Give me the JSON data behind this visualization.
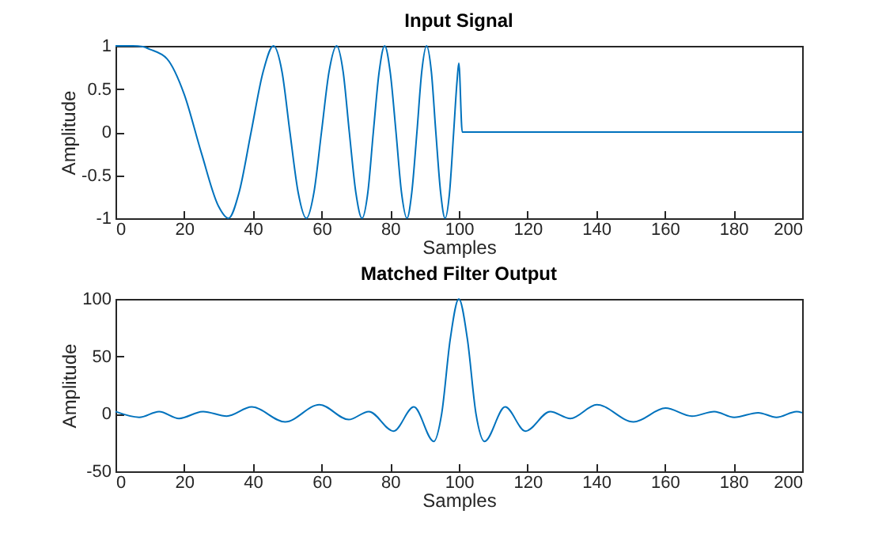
{
  "chart_data": [
    {
      "type": "line",
      "title": "Input Signal",
      "xlabel": "Samples",
      "ylabel": "Amplitude",
      "x": [
        0,
        5,
        8,
        10,
        15,
        20,
        25,
        30,
        32.9,
        36,
        39.5,
        43,
        46,
        48.5,
        50.8,
        53.2,
        55.6,
        57.8,
        60,
        62.2,
        64.4,
        66.3,
        68.1,
        70,
        71.8,
        73.5,
        75.1,
        76.8,
        78.4,
        80,
        81.7,
        83.3,
        84.9,
        86.3,
        87.8,
        89.2,
        90.6,
        92,
        93.3,
        94.7,
        96,
        97.3,
        98.5,
        99.5,
        100,
        101,
        200
      ],
      "series": [
        {
          "color": "#0072bd",
          "values": [
            1,
            1,
            0.99,
            0.96,
            0.85,
            0.44,
            -0.24,
            -0.86,
            -1,
            -0.7,
            0,
            0.7,
            1,
            0.7,
            0,
            -0.7,
            -1,
            -0.7,
            0,
            0.7,
            1,
            0.7,
            0,
            -0.7,
            -1,
            -0.7,
            0,
            0.7,
            1,
            0.7,
            0,
            -0.7,
            -1,
            -0.7,
            0,
            0.7,
            1,
            0.7,
            0,
            -0.7,
            -1,
            -0.7,
            0,
            0.6,
            0.8,
            0,
            0
          ]
        }
      ],
      "xlim": [
        0,
        200
      ],
      "ylim": [
        -1,
        1
      ],
      "xticks": [
        0,
        20,
        40,
        60,
        80,
        100,
        120,
        140,
        160,
        180,
        200
      ],
      "yticks": [
        -1,
        -0.5,
        0,
        0.5,
        1
      ]
    },
    {
      "type": "line",
      "title": "Matched Filter Output",
      "xlabel": "Samples",
      "ylabel": "Amplitude",
      "x": [
        0,
        6.9,
        12.7,
        18.5,
        25.5,
        32.4,
        39.7,
        49.4,
        59.4,
        67.9,
        73.8,
        81,
        86.9,
        92.7,
        95,
        97.5,
        100,
        102.5,
        105,
        107.5,
        113.5,
        119.4,
        126.6,
        132.5,
        140.2,
        150.9,
        160.2,
        167.9,
        174.4,
        180.2,
        187.2,
        192.5,
        198.4,
        200
      ],
      "series": [
        {
          "color": "#0072bd",
          "values": [
            2,
            -3,
            2,
            -4,
            2,
            -2,
            6,
            -7,
            8,
            -5,
            2,
            -15,
            6,
            -24,
            0,
            65,
            100,
            65,
            0,
            -24,
            6,
            -15,
            2,
            -4,
            8,
            -7,
            5,
            -2,
            2,
            -3,
            1,
            -3,
            2,
            1
          ]
        }
      ],
      "xlim": [
        0,
        200
      ],
      "ylim": [
        -50,
        100
      ],
      "xticks": [
        0,
        20,
        40,
        60,
        80,
        100,
        120,
        140,
        160,
        180,
        200
      ],
      "yticks": [
        -50,
        0,
        50,
        100
      ]
    }
  ]
}
